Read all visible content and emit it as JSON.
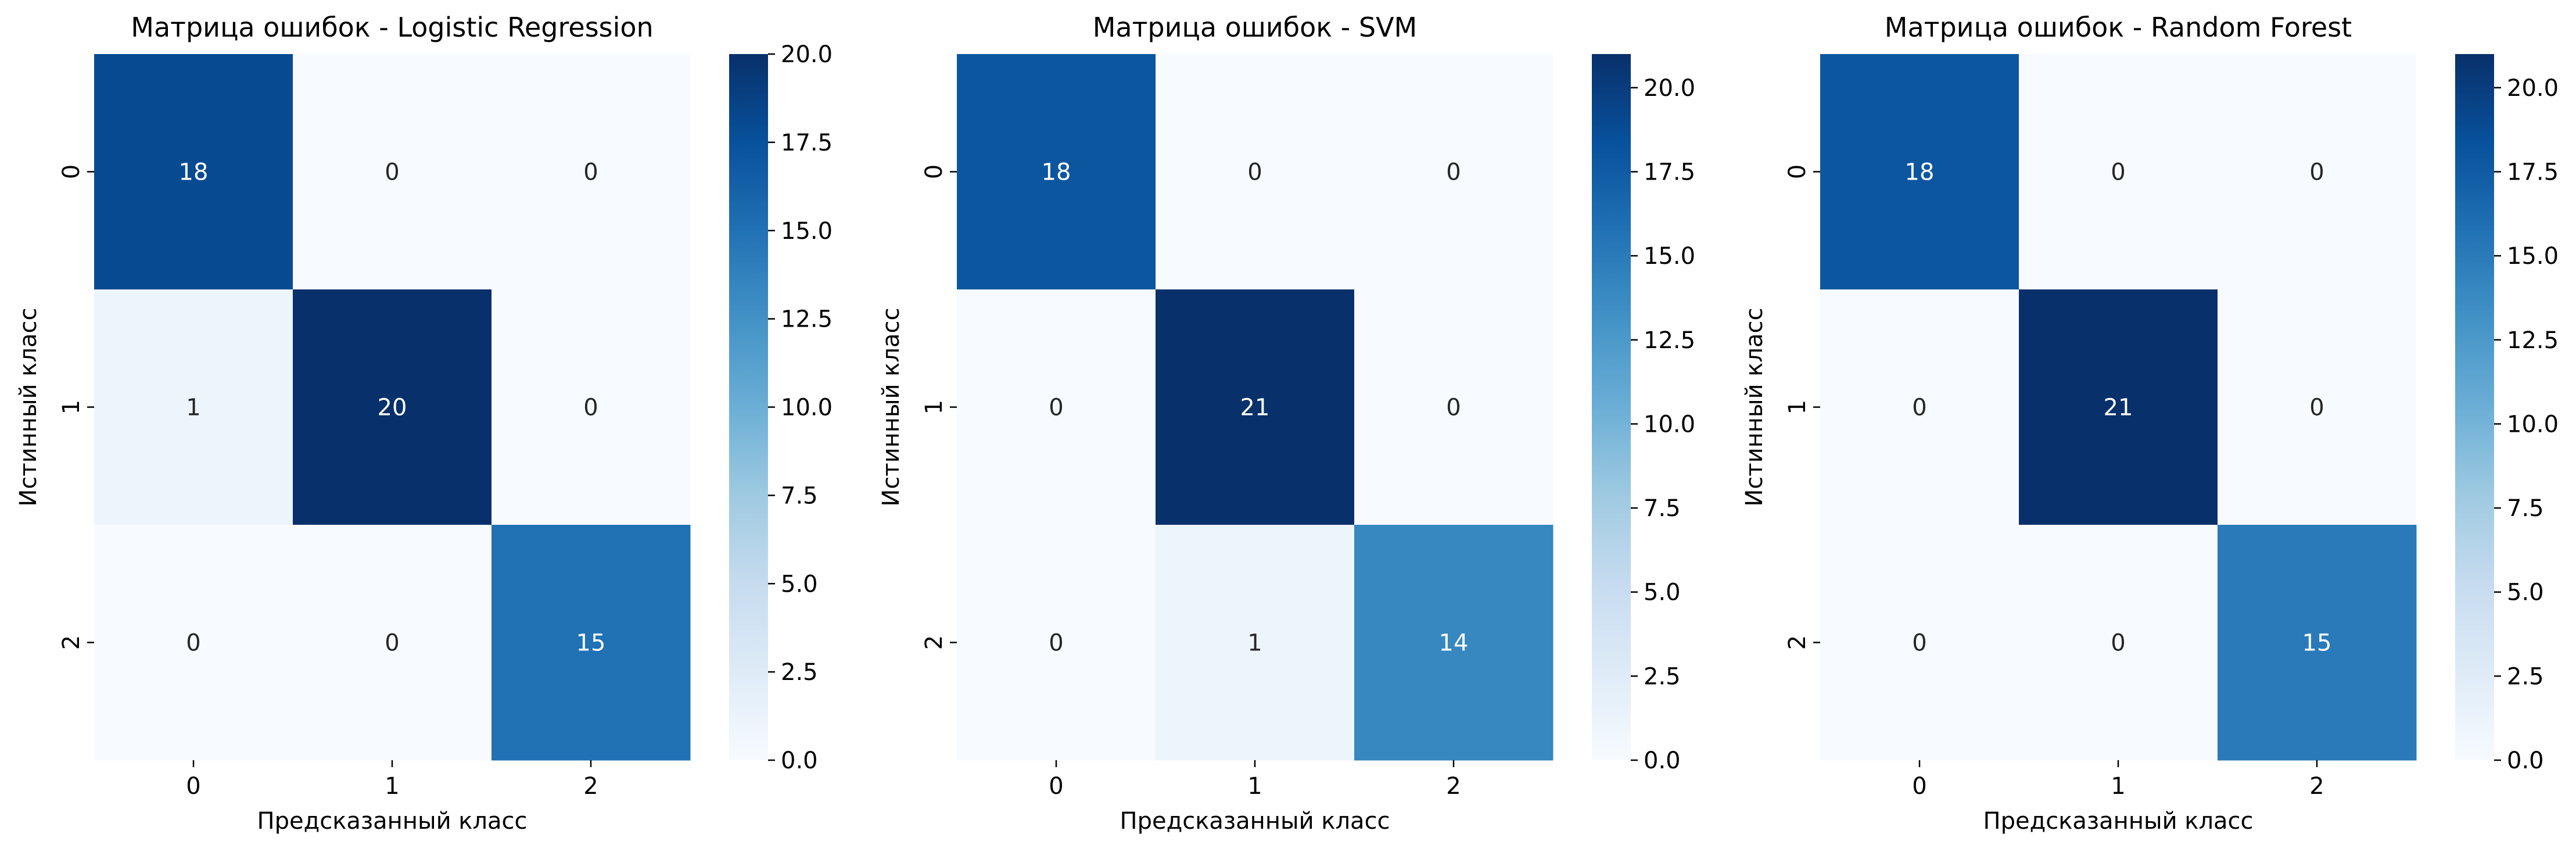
{
  "chart_data": [
    {
      "type": "heatmap",
      "title": "Матрица ошибок - Logistic Regression",
      "xlabel": "Предсказанный класс",
      "ylabel": "Истинный класс",
      "x_categories": [
        "0",
        "1",
        "2"
      ],
      "y_categories": [
        "0",
        "1",
        "2"
      ],
      "values": [
        [
          18,
          0,
          0
        ],
        [
          1,
          20,
          0
        ],
        [
          0,
          0,
          15
        ]
      ],
      "colormap": "Blues",
      "colorbar": {
        "min": 0,
        "max": 20,
        "ticks": [
          "0.0",
          "2.5",
          "5.0",
          "7.5",
          "10.0",
          "12.5",
          "15.0",
          "17.5",
          "20.0"
        ]
      }
    },
    {
      "type": "heatmap",
      "title": "Матрица ошибок - SVM",
      "xlabel": "Предсказанный класс",
      "ylabel": "Истинный класс",
      "x_categories": [
        "0",
        "1",
        "2"
      ],
      "y_categories": [
        "0",
        "1",
        "2"
      ],
      "values": [
        [
          18,
          0,
          0
        ],
        [
          0,
          21,
          0
        ],
        [
          0,
          1,
          14
        ]
      ],
      "colormap": "Blues",
      "colorbar": {
        "min": 0,
        "max": 21,
        "ticks": [
          "0.0",
          "2.5",
          "5.0",
          "7.5",
          "10.0",
          "12.5",
          "15.0",
          "17.5",
          "20.0"
        ]
      }
    },
    {
      "type": "heatmap",
      "title": "Матрица ошибок - Random Forest",
      "xlabel": "Предсказанный класс",
      "ylabel": "Истинный класс",
      "x_categories": [
        "0",
        "1",
        "2"
      ],
      "y_categories": [
        "0",
        "1",
        "2"
      ],
      "values": [
        [
          18,
          0,
          0
        ],
        [
          0,
          21,
          0
        ],
        [
          0,
          0,
          15
        ]
      ],
      "colormap": "Blues",
      "colorbar": {
        "min": 0,
        "max": 21,
        "ticks": [
          "0.0",
          "2.5",
          "5.0",
          "7.5",
          "10.0",
          "12.5",
          "15.0",
          "17.5",
          "20.0"
        ]
      }
    }
  ]
}
